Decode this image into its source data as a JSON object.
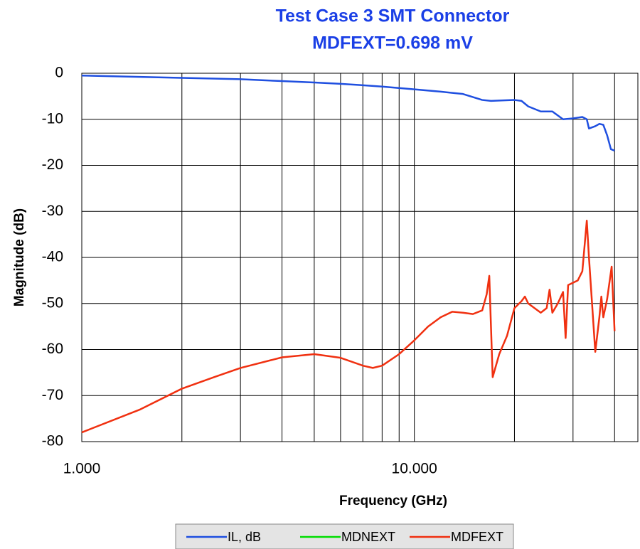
{
  "chart_data": {
    "type": "line",
    "title": "Test Case 3 SMT Connector",
    "subtitle": "MDFEXT=0.698 mV",
    "xlabel": "Frequency (GHz)",
    "ylabel": "Magnitude (dB)",
    "xscale": "log",
    "xlim": [
      1,
      47
    ],
    "ylim": [
      -80,
      0
    ],
    "xticks": [
      {
        "value": 1,
        "label": "1.000"
      },
      {
        "value": 10,
        "label": "10.000"
      }
    ],
    "xgrid_minor": [
      2,
      3,
      4,
      5,
      6,
      7,
      8,
      9,
      20,
      30,
      40
    ],
    "yticks": [
      0,
      -10,
      -20,
      -30,
      -40,
      -50,
      -60,
      -70,
      -80
    ],
    "grid": true,
    "legend": "bottom",
    "series": [
      {
        "name": "IL, dB",
        "color": "#1f4fe0",
        "x": [
          1,
          2,
          3,
          4,
          5,
          6,
          7,
          8,
          10,
          12,
          14,
          16,
          17,
          20,
          21,
          22,
          24,
          26,
          28,
          30,
          32,
          33,
          33.5,
          35,
          36,
          37,
          38,
          39,
          40
        ],
        "values": [
          -0.5,
          -1,
          -1.3,
          -1.7,
          -2,
          -2.3,
          -2.6,
          -2.9,
          -3.5,
          -4,
          -4.5,
          -5.8,
          -6,
          -5.8,
          -6,
          -7.2,
          -8.3,
          -8.3,
          -10,
          -9.8,
          -9.5,
          -10,
          -12,
          -11.5,
          -11,
          -11.2,
          -13.5,
          -16.5,
          -16.8
        ]
      },
      {
        "name": "MDNEXT",
        "color": "#00dd00"
      },
      {
        "name": "MDFEXT",
        "color": "#f03010",
        "x": [
          1,
          1.5,
          2,
          2.5,
          3,
          4,
          5,
          6,
          7,
          7.5,
          8,
          9,
          10,
          11,
          12,
          13,
          14,
          15,
          16,
          16.5,
          16.8,
          17.2,
          18,
          19,
          20,
          21,
          21.5,
          22,
          24,
          25,
          25.5,
          26,
          27,
          28,
          28.5,
          29,
          31,
          32,
          33,
          33.5,
          35,
          36,
          36.5,
          37,
          38,
          39.2,
          40
        ],
        "values": [
          -78,
          -73,
          -68.5,
          -66,
          -64,
          -61.7,
          -61,
          -61.8,
          -63.5,
          -64,
          -63.5,
          -61,
          -58,
          -55,
          -53,
          -51.8,
          -52,
          -52.3,
          -51.5,
          -48,
          -44,
          -66,
          -61,
          -57,
          -51,
          -49.5,
          -48.5,
          -50,
          -52,
          -51,
          -47,
          -52,
          -50,
          -47.5,
          -57.5,
          -46,
          -45,
          -43,
          -32,
          -40,
          -60.5,
          -53,
          -48.5,
          -53,
          -49,
          -42,
          -56
        ]
      }
    ]
  }
}
